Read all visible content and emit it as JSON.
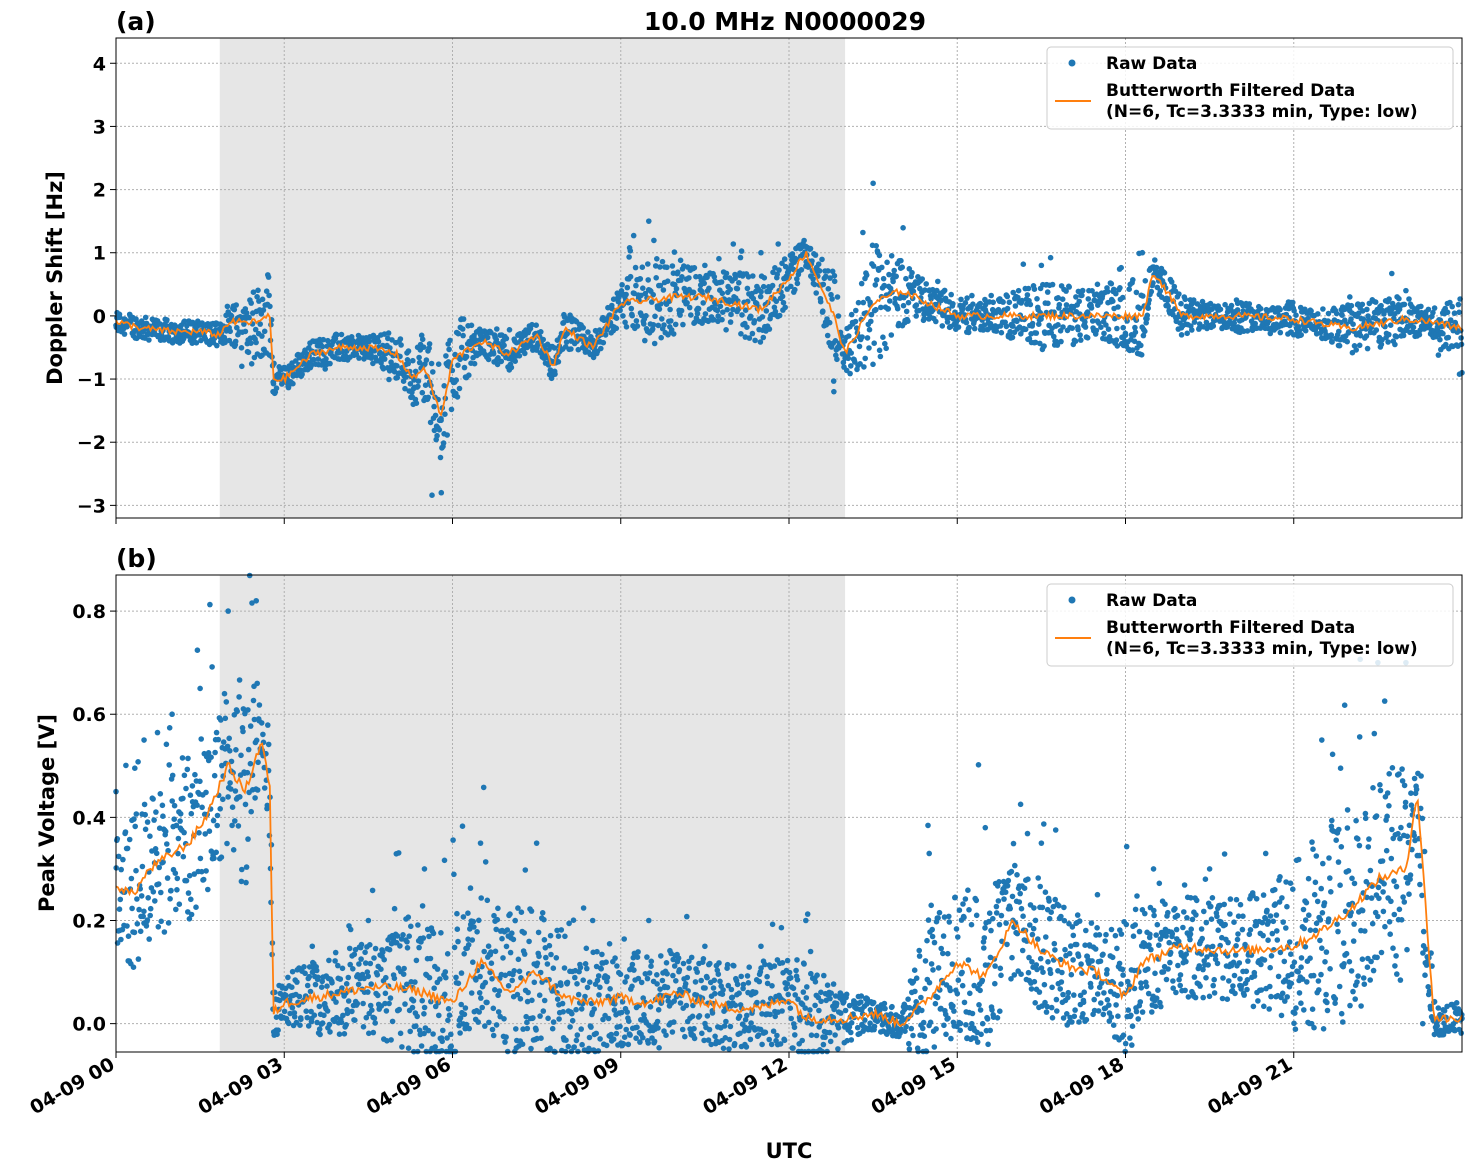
{
  "figure": {
    "title": "10.0 MHz N0000029",
    "xlabel": "UTC",
    "x_tick_labels": [
      "04-09 00",
      "04-09 03",
      "04-09 06",
      "04-09 09",
      "04-09 12",
      "04-09 15",
      "04-09 18",
      "04-09 21"
    ]
  },
  "colors": {
    "raw": "#1f77b4",
    "filtered": "#ff7f0e",
    "shade": "#e6e6e6",
    "grid": "#b0b0b0"
  },
  "legend": {
    "raw_label": "Raw Data",
    "filtered_line1": "Butterworth Filtered Data",
    "filtered_line2": "(N=6, Tc=3.3333 min, Type: low)"
  },
  "chart_data": [
    {
      "type": "scatter",
      "panel_label": "(a)",
      "ylabel": "Doppler Shift [Hz]",
      "xlim_hours": [
        0,
        24
      ],
      "ylim": [
        -3.2,
        4.4
      ],
      "yticks": [
        -3,
        -2,
        -1,
        0,
        1,
        2,
        3,
        4
      ],
      "y_tick_labels": [
        "−3",
        "−2",
        "−1",
        "0",
        "1",
        "2",
        "3",
        "4"
      ],
      "grid": true,
      "legend_position": "top-right",
      "shaded_span_hours": [
        1.85,
        13.0
      ],
      "series": [
        {
          "name": "Butterworth Filtered Data",
          "hours": [
            0,
            0.5,
            1.0,
            1.5,
            1.85,
            2.0,
            2.5,
            2.75,
            2.8,
            3.0,
            3.5,
            4.0,
            4.5,
            5.0,
            5.3,
            5.5,
            5.8,
            6.0,
            6.5,
            7.0,
            7.5,
            7.8,
            8.0,
            8.5,
            9.0,
            9.5,
            10.0,
            10.5,
            11.0,
            11.5,
            12.0,
            12.3,
            12.5,
            12.8,
            13.0,
            13.5,
            14.0,
            15.0,
            16.0,
            17.0,
            18.0,
            18.3,
            18.5,
            18.8,
            19.0,
            20.0,
            21.0,
            22.0,
            23.0,
            23.5,
            24.0
          ],
          "values": [
            -0.1,
            -0.2,
            -0.25,
            -0.25,
            -0.3,
            -0.1,
            -0.1,
            0.0,
            -1.0,
            -1.0,
            -0.6,
            -0.5,
            -0.5,
            -0.6,
            -1.0,
            -0.8,
            -1.6,
            -0.7,
            -0.4,
            -0.6,
            -0.3,
            -0.8,
            -0.2,
            -0.5,
            0.2,
            0.25,
            0.3,
            0.3,
            0.2,
            0.1,
            0.6,
            1.0,
            0.6,
            0.0,
            -0.6,
            0.2,
            0.4,
            0.0,
            0.0,
            0.0,
            0.0,
            0.0,
            0.7,
            0.3,
            0.0,
            0.0,
            -0.05,
            -0.2,
            -0.05,
            -0.1,
            -0.2
          ]
        },
        {
          "name": "Raw Data",
          "hours": [
            0,
            1.85,
            2.8,
            3.5,
            4.5,
            5.3,
            5.8,
            6.5,
            7.5,
            8.5,
            9.5,
            10.5,
            11.5,
            12.3,
            12.8,
            13.5,
            14.5,
            15.5,
            16.5,
            17.5,
            18.3,
            19.0,
            20.0,
            21.0,
            22.0,
            23.0,
            24.0
          ],
          "values": [
            -0.15,
            -0.3,
            -1.2,
            -0.7,
            -0.5,
            -1.4,
            -2.8,
            -0.3,
            -0.5,
            -0.5,
            1.5,
            0.8,
            1.0,
            1.1,
            -1.2,
            2.1,
            0.4,
            0.1,
            0.8,
            0.5,
            1.0,
            -0.3,
            0.2,
            -0.3,
            0.3,
            0.4,
            -0.9
          ]
        }
      ]
    },
    {
      "type": "scatter",
      "panel_label": "(b)",
      "ylabel": "Peak Voltage [V]",
      "xlim_hours": [
        0,
        24
      ],
      "ylim": [
        -0.055,
        0.87
      ],
      "yticks": [
        0.0,
        0.2,
        0.4,
        0.6,
        0.8
      ],
      "y_tick_labels": [
        "0.0",
        "0.2",
        "0.4",
        "0.6",
        "0.8"
      ],
      "grid": true,
      "legend_position": "top-right",
      "shaded_span_hours": [
        1.85,
        13.0
      ],
      "series": [
        {
          "name": "Butterworth Filtered Data",
          "hours": [
            0,
            0.3,
            0.6,
            1.0,
            1.3,
            1.6,
            2.0,
            2.3,
            2.6,
            2.75,
            2.8,
            3.0,
            3.5,
            4.0,
            4.5,
            5.0,
            5.5,
            6.0,
            6.5,
            7.0,
            7.5,
            8.0,
            8.5,
            9.0,
            9.5,
            10.0,
            10.5,
            11.0,
            11.5,
            12.0,
            12.3,
            12.5,
            13.0,
            13.5,
            14.0,
            14.5,
            15.0,
            15.5,
            16.0,
            16.5,
            17.0,
            17.5,
            18.0,
            18.3,
            19.0,
            20.0,
            21.0,
            21.5,
            22.0,
            22.5,
            23.0,
            23.2,
            23.5,
            24.0
          ],
          "values": [
            0.27,
            0.25,
            0.3,
            0.33,
            0.35,
            0.4,
            0.5,
            0.45,
            0.55,
            0.45,
            0.02,
            0.04,
            0.05,
            0.06,
            0.07,
            0.07,
            0.06,
            0.04,
            0.12,
            0.06,
            0.1,
            0.05,
            0.04,
            0.05,
            0.04,
            0.06,
            0.04,
            0.03,
            0.03,
            0.05,
            0.01,
            0.01,
            0.01,
            0.02,
            0.0,
            0.05,
            0.12,
            0.09,
            0.2,
            0.14,
            0.11,
            0.1,
            0.05,
            0.12,
            0.15,
            0.14,
            0.15,
            0.18,
            0.22,
            0.28,
            0.3,
            0.45,
            0.01,
            0.01
          ]
        },
        {
          "name": "Raw Data",
          "hours": [
            0,
            0.5,
            1.0,
            1.5,
            2.0,
            2.5,
            2.8,
            3.5,
            4.5,
            5.5,
            6.5,
            7.5,
            8.5,
            9.5,
            10.5,
            11.5,
            12.3,
            13.0,
            14.0,
            14.5,
            15.5,
            16.5,
            17.5,
            18.5,
            19.5,
            20.5,
            21.5,
            22.5,
            23.0,
            23.3,
            24.0
          ],
          "values": [
            0.45,
            0.55,
            0.6,
            0.65,
            0.8,
            0.82,
            0.06,
            0.15,
            0.2,
            0.3,
            0.35,
            0.35,
            0.2,
            0.2,
            0.15,
            0.15,
            0.2,
            0.05,
            0.0,
            0.33,
            0.38,
            0.35,
            0.25,
            0.3,
            0.3,
            0.33,
            0.55,
            0.7,
            0.7,
            0.0,
            0.01
          ]
        }
      ]
    }
  ]
}
